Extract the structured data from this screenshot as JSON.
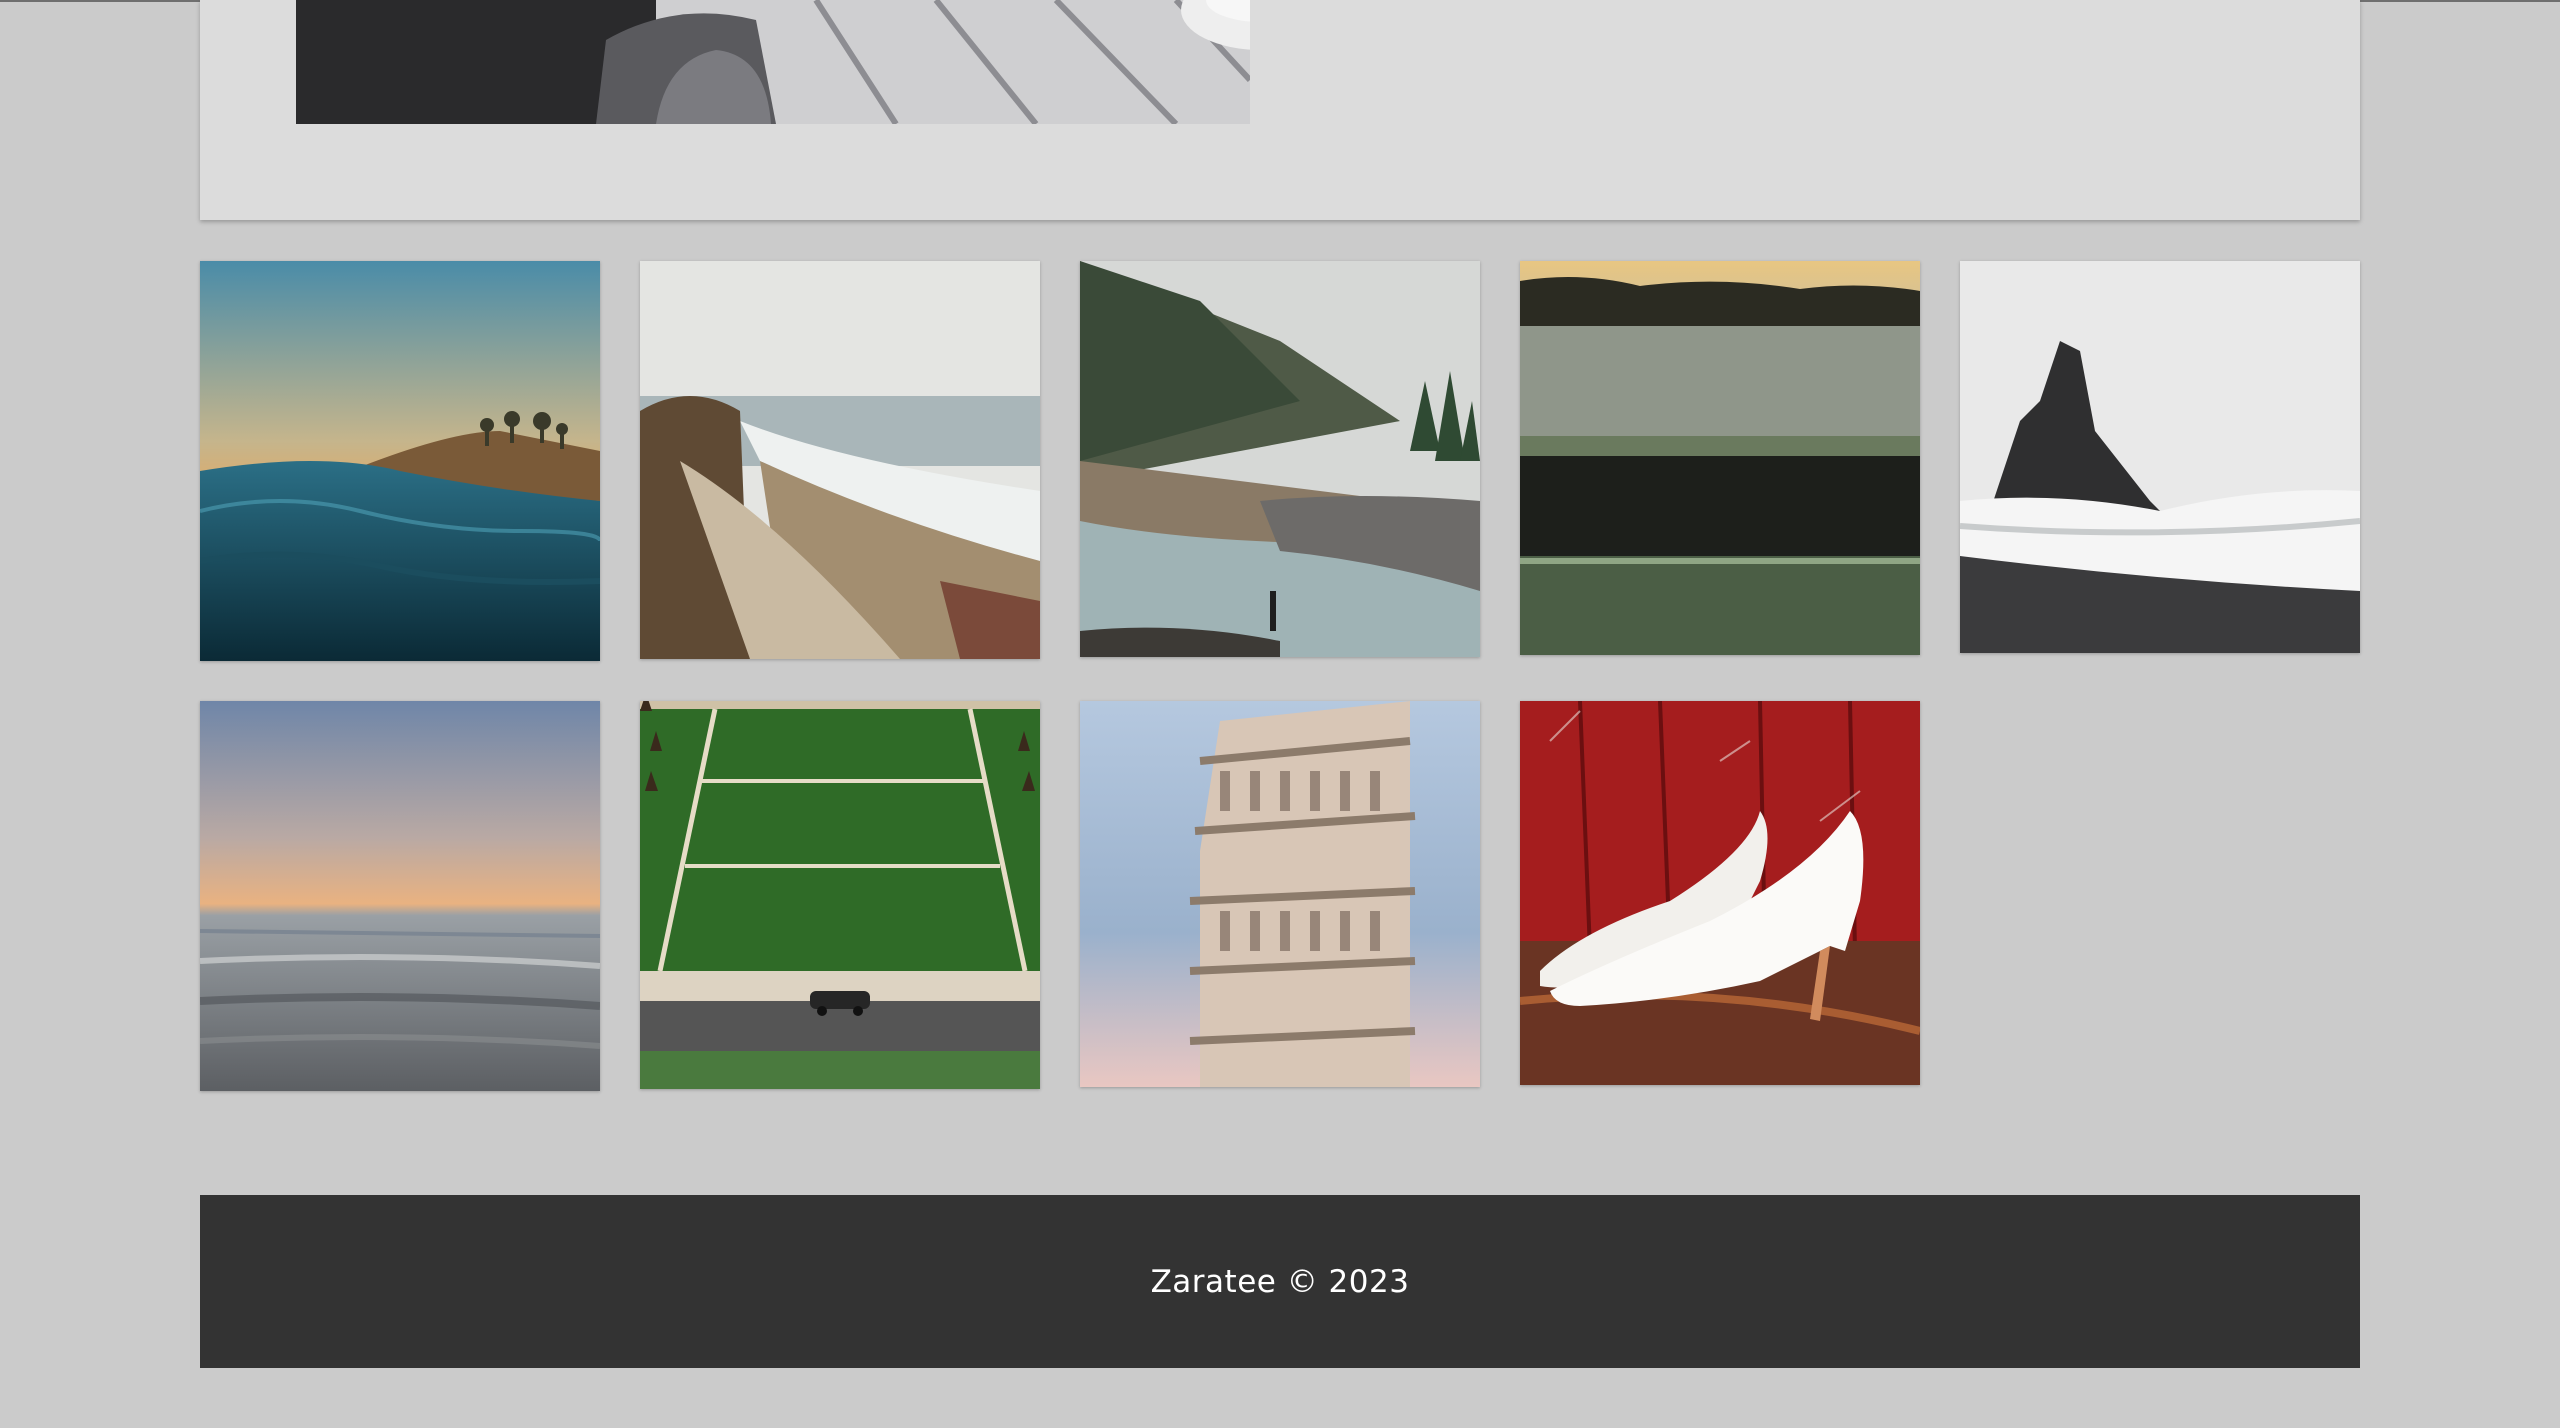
{
  "hero": {
    "image": "coffee-table-photo"
  },
  "gallery": {
    "items": [
      {
        "image": "ocean-wave-sunset-photo"
      },
      {
        "image": "coastal-cliff-photo"
      },
      {
        "image": "misty-river-valley-photo"
      },
      {
        "image": "frosty-field-photo"
      },
      {
        "image": "sea-stack-beach-photo"
      },
      {
        "image": "calm-sea-horizon-photo"
      },
      {
        "image": "green-lawn-terraces-photo"
      },
      {
        "image": "leaning-tower-photo"
      },
      {
        "image": "white-heels-red-wall-photo"
      }
    ]
  },
  "footer": {
    "text": "Zaratee © 2023"
  },
  "colors": {
    "background": "#cbcbcb",
    "card": "#dcdcdc",
    "footer": "#333333"
  }
}
